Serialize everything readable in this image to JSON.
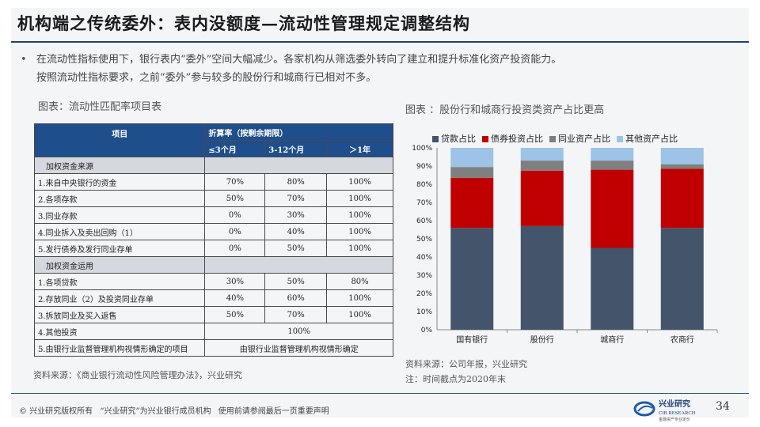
{
  "title": "机构端之传统委外：表内没额度—流动性管理规定调整结构",
  "bullet": {
    "line1": "在流动性指标使用下，银行表内“委外”空间大幅减少。各家机构从筛选委外转向了建立和提升标准化资产投资能力。",
    "line2": "按照流动性指标要求，之前“委外”参与较多的股份行和城商行已相对不多。"
  },
  "table_caption": "图表：流动性匹配率项目表",
  "chart_caption": "图表 ：股份行和城商行投资类资产占比更高",
  "table": {
    "headers": {
      "item": "项目",
      "rate": "折算率（按剩余期限）",
      "col1": "≤3个月",
      "col2": "3-12个月",
      "col3": "＞1年"
    },
    "section1": "加权资金来源",
    "rows1": [
      {
        "label": "1.来自中央银行的资金",
        "v1": "70%",
        "v2": "80%",
        "v3": "100%"
      },
      {
        "label": "2.各项存款",
        "v1": "50%",
        "v2": "70%",
        "v3": "100%"
      },
      {
        "label": "3.同业存款",
        "v1": "0%",
        "v2": "30%",
        "v3": "100%"
      },
      {
        "label": "4.同业拆入及卖出回购（1）",
        "v1": "0%",
        "v2": "40%",
        "v3": "100%"
      },
      {
        "label": "5.发行债券及发行同业存单",
        "v1": "0%",
        "v2": "50%",
        "v3": "100%"
      }
    ],
    "section2": "加权资金运用",
    "rows2": [
      {
        "label": "1.各项贷款",
        "v1": "30%",
        "v2": "50%",
        "v3": "80%"
      },
      {
        "label": "2.存放同业（2）及投资同业存单",
        "v1": "40%",
        "v2": "60%",
        "v3": "100%"
      },
      {
        "label": "3.拆放同业及买入返售",
        "v1": "50%",
        "v2": "70%",
        "v3": "100%"
      }
    ],
    "row_other": {
      "label": "4.其他投资",
      "value": "100%"
    },
    "row_reg": {
      "label": "5.由银行业监督管理机构视情形确定的项目",
      "value": "由银行业监督管理机构视情形确定"
    }
  },
  "source_left": "资料来源：《商业银行流动性风险管理办法》，兴业研究",
  "source_right": "资料来源：公司年报，兴业研究",
  "note_right": "注：时间截点为2020年末",
  "chart_data": {
    "type": "bar",
    "stacked": true,
    "categories": [
      "国有银行",
      "股份行",
      "城商行",
      "农商行"
    ],
    "series": [
      {
        "name": "贷款占比",
        "color": "#44546a",
        "values": [
          56,
          57,
          45,
          56
        ]
      },
      {
        "name": "债券投资占比",
        "color": "#c00000",
        "values": [
          27.5,
          30.5,
          43,
          32.5
        ]
      },
      {
        "name": "同业资产占比",
        "color": "#7f7f7f",
        "values": [
          6,
          5.5,
          5,
          2.5
        ]
      },
      {
        "name": "其他资产占比",
        "color": "#9dc3e6",
        "values": [
          10.5,
          7,
          7,
          9
        ]
      }
    ],
    "yticks": [
      "0%",
      "10%",
      "20%",
      "30%",
      "40%",
      "50%",
      "60%",
      "70%",
      "80%",
      "90%",
      "100%"
    ],
    "ylim": [
      0,
      100
    ],
    "legend": "top"
  },
  "footer": {
    "copyright": "©  兴业研究版权所有",
    "member": "“兴业研究”为兴业银行成员机构",
    "disclaimer": "使用前请参阅最后一页重要声明"
  },
  "logo": {
    "cn": "兴业研究",
    "en": "CIB RESEARCH",
    "tagline": "金融资产专业定价"
  },
  "page_number": "34"
}
